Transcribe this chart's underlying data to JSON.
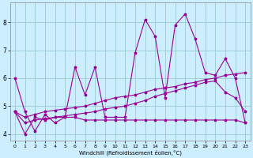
{
  "bg_color": "#cceeff",
  "line_color": "#990099",
  "grid_color": "#99cccc",
  "xlabel": "Windchill (Refroidissement éolien,°C)",
  "x_values": [
    0,
    1,
    2,
    3,
    4,
    5,
    6,
    7,
    8,
    9,
    10,
    11,
    12,
    13,
    14,
    15,
    16,
    17,
    18,
    19,
    20,
    21,
    22,
    23
  ],
  "y_main": [
    6.0,
    4.8,
    4.1,
    4.7,
    4.4,
    4.6,
    6.4,
    5.4,
    6.4,
    4.6,
    4.6,
    4.6,
    6.9,
    8.1,
    7.5,
    5.3,
    7.9,
    8.3,
    7.4,
    6.2,
    6.1,
    6.7,
    6.0,
    4.4
  ],
  "y_diagonal": [
    4.8,
    4.6,
    4.7,
    4.8,
    4.85,
    4.9,
    4.95,
    5.0,
    5.1,
    5.2,
    5.3,
    5.35,
    5.4,
    5.5,
    5.6,
    5.65,
    5.7,
    5.8,
    5.85,
    5.95,
    6.0,
    6.1,
    6.15,
    6.2
  ],
  "y_curve": [
    4.8,
    4.4,
    4.5,
    4.55,
    4.6,
    4.65,
    4.7,
    4.75,
    4.8,
    4.9,
    4.95,
    5.0,
    5.1,
    5.2,
    5.35,
    5.45,
    5.55,
    5.65,
    5.75,
    5.85,
    5.9,
    5.5,
    5.3,
    4.8
  ],
  "y_low": [
    4.8,
    4.0,
    4.6,
    4.5,
    4.6,
    4.6,
    4.6,
    4.5,
    4.5,
    4.5,
    4.5,
    4.5,
    4.5,
    4.5,
    4.5,
    4.5,
    4.5,
    4.5,
    4.5,
    4.5,
    4.5,
    4.5,
    4.5,
    4.4
  ],
  "ylim": [
    3.75,
    8.7
  ],
  "xlim": [
    -0.5,
    23.5
  ],
  "xticks": [
    0,
    1,
    2,
    3,
    4,
    5,
    6,
    7,
    8,
    9,
    10,
    11,
    12,
    13,
    14,
    15,
    16,
    17,
    18,
    19,
    20,
    21,
    22,
    23
  ],
  "yticks": [
    4,
    5,
    6,
    7,
    8
  ]
}
